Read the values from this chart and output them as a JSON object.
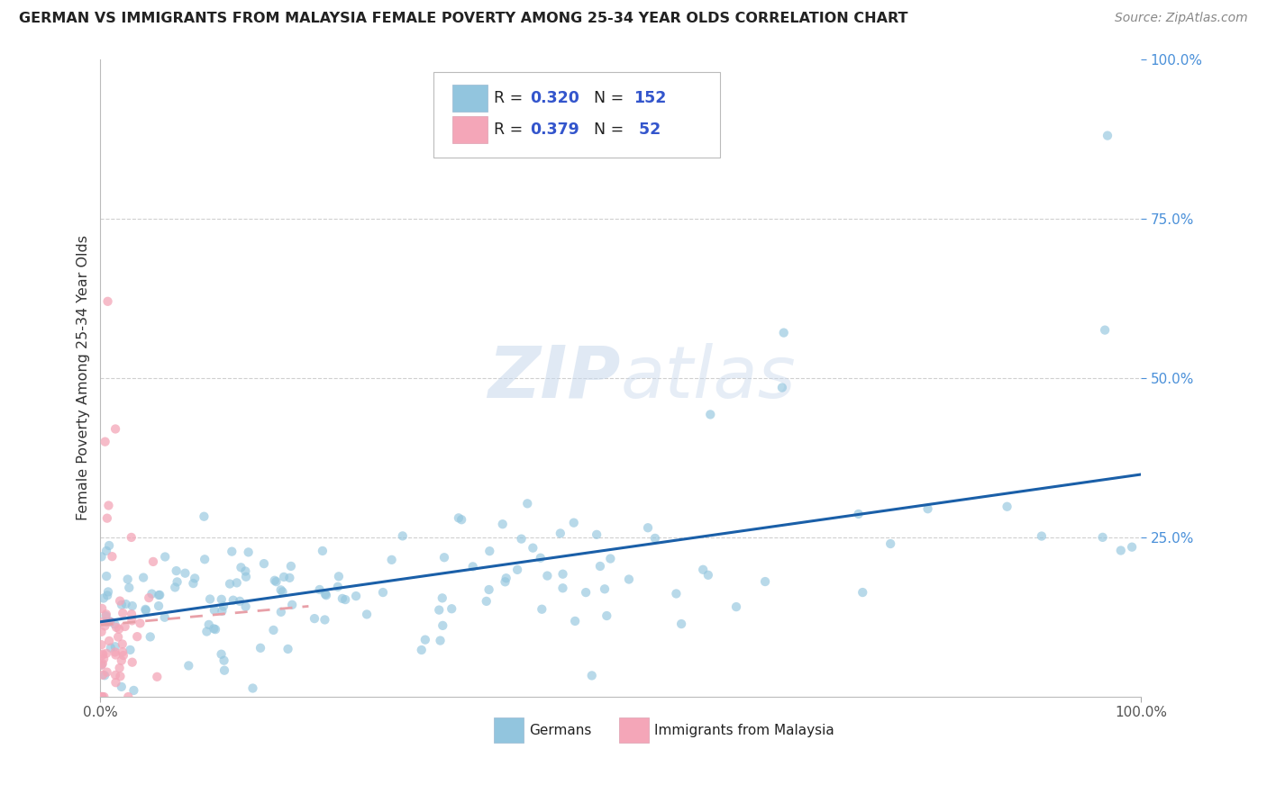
{
  "title": "GERMAN VS IMMIGRANTS FROM MALAYSIA FEMALE POVERTY AMONG 25-34 YEAR OLDS CORRELATION CHART",
  "source": "Source: ZipAtlas.com",
  "ylabel": "Female Poverty Among 25-34 Year Olds",
  "watermark": "ZIPatlas",
  "german_R": 0.32,
  "german_N": 152,
  "malaysia_R": 0.379,
  "malaysia_N": 52,
  "german_color": "#92c5de",
  "malaysia_color": "#f4a6b8",
  "trend_german_color": "#1a5fa8",
  "trend_malaysia_color": "#e8a0a8",
  "background_color": "#ffffff",
  "grid_color": "#cccccc",
  "title_color": "#222222",
  "right_axis_color": "#4a90d9",
  "legend_text_color": "#1a1a2e",
  "legend_value_color": "#3355cc"
}
